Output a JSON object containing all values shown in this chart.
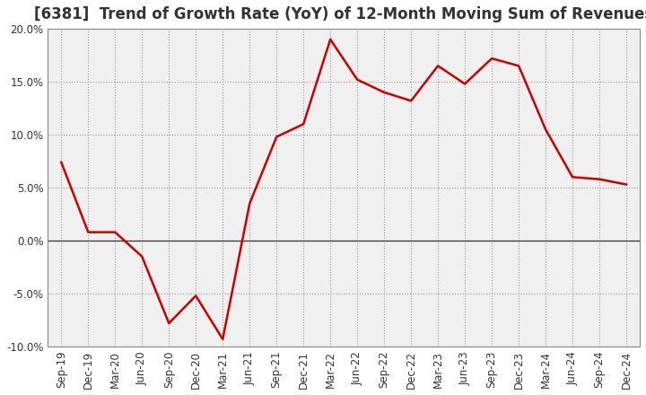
{
  "title": "[6381]  Trend of Growth Rate (YoY) of 12-Month Moving Sum of Revenues",
  "x_labels": [
    "Sep-19",
    "Dec-19",
    "Mar-20",
    "Jun-20",
    "Sep-20",
    "Dec-20",
    "Mar-21",
    "Jun-21",
    "Sep-21",
    "Dec-21",
    "Mar-22",
    "Jun-22",
    "Sep-22",
    "Dec-22",
    "Mar-23",
    "Jun-23",
    "Sep-23",
    "Dec-23",
    "Mar-24",
    "Jun-24",
    "Sep-24",
    "Dec-24"
  ],
  "y_values": [
    7.4,
    0.8,
    0.8,
    -1.5,
    -7.8,
    -5.2,
    -9.3,
    3.5,
    9.8,
    11.0,
    19.0,
    15.2,
    14.0,
    13.2,
    16.5,
    14.8,
    17.2,
    16.5,
    10.5,
    6.0,
    5.8,
    5.3
  ],
  "line_color": "#cc0000",
  "line_width": 1.8,
  "ylim": [
    -10.0,
    20.0
  ],
  "yticks": [
    -10.0,
    -5.0,
    0.0,
    5.0,
    10.0,
    15.0,
    20.0
  ],
  "background_color": "#ffffff",
  "plot_bg_color": "#f0f0f0",
  "grid_color": "#999999",
  "zero_line_color": "#333333",
  "title_fontsize": 12,
  "tick_fontsize": 8.5,
  "title_color": "#333333"
}
